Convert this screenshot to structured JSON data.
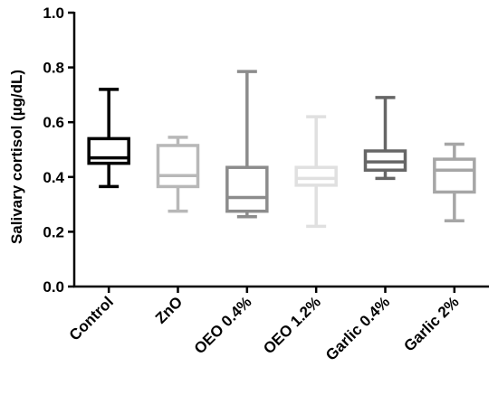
{
  "chart_data": {
    "type": "box",
    "title": "",
    "xlabel": "",
    "ylabel": "Salivary cortisol (µg/dL)",
    "ylim": [
      0.0,
      1.0
    ],
    "yticks": [
      "0.0",
      "0.2",
      "0.4",
      "0.6",
      "0.8",
      "1.0"
    ],
    "grid": false,
    "categories": [
      "Control",
      "ZnO",
      "OEO 0.4%",
      "OEO 1.2%",
      "Garlic 0.4%",
      "Garlic 2%"
    ],
    "series": [
      {
        "category": "Control",
        "min": 0.365,
        "q1": 0.45,
        "median": 0.47,
        "q3": 0.54,
        "max": 0.72,
        "color": "#000000"
      },
      {
        "category": "ZnO",
        "min": 0.275,
        "q1": 0.365,
        "median": 0.405,
        "q3": 0.515,
        "max": 0.545,
        "color": "#b8b8b8"
      },
      {
        "category": "OEO 0.4%",
        "min": 0.255,
        "q1": 0.275,
        "median": 0.325,
        "q3": 0.435,
        "max": 0.785,
        "color": "#8c8c8c"
      },
      {
        "category": "OEO 1.2%",
        "min": 0.22,
        "q1": 0.37,
        "median": 0.395,
        "q3": 0.435,
        "max": 0.62,
        "color": "#e0e0e0"
      },
      {
        "category": "Garlic 0.4%",
        "min": 0.395,
        "q1": 0.425,
        "median": 0.455,
        "q3": 0.495,
        "max": 0.69,
        "color": "#666666"
      },
      {
        "category": "Garlic 2%",
        "min": 0.24,
        "q1": 0.345,
        "median": 0.425,
        "q3": 0.465,
        "max": 0.52,
        "color": "#a6a6a6"
      }
    ]
  }
}
